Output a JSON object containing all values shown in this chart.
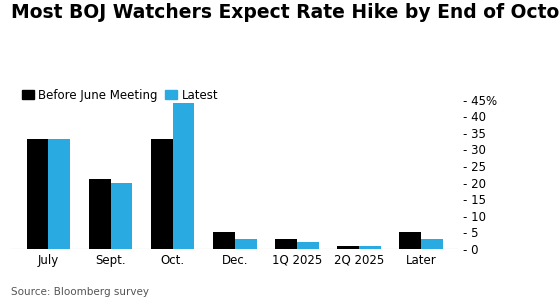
{
  "title": "Most BOJ Watchers Expect Rate Hike by End of October",
  "categories": [
    "July",
    "Sept.",
    "Oct.",
    "Dec.",
    "1Q 2025",
    "2Q 2025",
    "Later"
  ],
  "before_june": [
    33,
    21,
    33,
    5,
    3,
    1,
    5
  ],
  "latest": [
    33,
    20,
    44,
    3,
    2,
    1,
    3
  ],
  "color_before": "#000000",
  "color_latest": "#29abe2",
  "ylim": [
    0,
    47
  ],
  "yticks": [
    0,
    5,
    10,
    15,
    20,
    25,
    30,
    35,
    40,
    45
  ],
  "ylabel_suffix": "%",
  "legend_labels": [
    "Before June Meeting",
    "Latest"
  ],
  "source_text": "Source: Bloomberg survey",
  "title_fontsize": 13.5,
  "legend_fontsize": 8.5,
  "tick_fontsize": 8.5,
  "bar_width": 0.35,
  "background_color": "#ffffff"
}
